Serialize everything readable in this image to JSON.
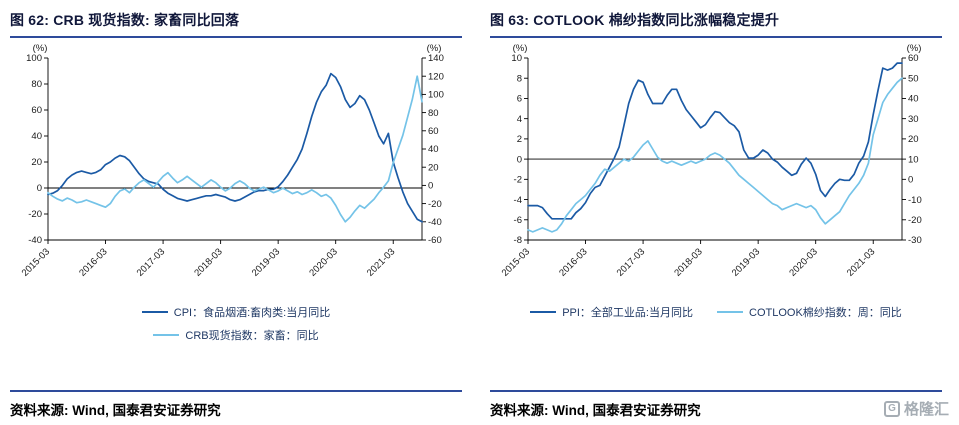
{
  "watermark": {
    "text": "格隆汇",
    "letter": "G"
  },
  "chart_data": [
    {
      "type": "line",
      "title": "图 62: CRB 现货指数: 家畜同比回落",
      "source": "资料来源: Wind, 国泰君安证券研究",
      "legend_position": "bottom",
      "grid": false,
      "x_labels": [
        "2015-03",
        "2016-03",
        "2017-03",
        "2018-03",
        "2019-03",
        "2020-03",
        "2021-03"
      ],
      "x_label_indices": [
        0,
        12,
        24,
        36,
        48,
        60,
        72
      ],
      "left_axis": {
        "label": "(%)",
        "min": -40,
        "max": 100,
        "ticks": [
          100,
          80,
          60,
          40,
          20,
          0,
          -20,
          -40
        ]
      },
      "right_axis": {
        "label": "(%)",
        "min": -60,
        "max": 140,
        "ticks": [
          140,
          120,
          100,
          80,
          60,
          40,
          20,
          0,
          -20,
          -40,
          -60
        ]
      },
      "series": [
        {
          "name": "CPI：食品烟酒:畜肉类:当月同比",
          "axis": "left",
          "color": "#1b5aa5",
          "values": [
            -5,
            -4,
            -2,
            2,
            7,
            10,
            12,
            13,
            12,
            11,
            12,
            14,
            18,
            20,
            23,
            25,
            24,
            21,
            16,
            11,
            7,
            5,
            4,
            3,
            -1,
            -4,
            -6,
            -8,
            -9,
            -10,
            -9,
            -8,
            -7,
            -6,
            -6,
            -5,
            -6,
            -7,
            -9,
            -10,
            -9,
            -7,
            -5,
            -3,
            -2,
            -2,
            -1,
            -1,
            1,
            5,
            10,
            16,
            22,
            30,
            42,
            55,
            66,
            74,
            79,
            88,
            85,
            78,
            68,
            62,
            65,
            71,
            68,
            60,
            50,
            40,
            34,
            42,
            20,
            8,
            -3,
            -12,
            -18,
            -24,
            -26
          ]
        },
        {
          "name": "CRB现货指数：家畜：同比",
          "axis": "right",
          "color": "#74c3e8",
          "values": [
            -8,
            -12,
            -15,
            -17,
            -14,
            -16,
            -19,
            -18,
            -16,
            -18,
            -20,
            -22,
            -24,
            -20,
            -12,
            -6,
            -4,
            -8,
            -2,
            3,
            6,
            2,
            -2,
            4,
            10,
            14,
            8,
            3,
            6,
            10,
            6,
            2,
            -2,
            2,
            6,
            3,
            -2,
            -6,
            -3,
            2,
            5,
            2,
            -3,
            -6,
            -4,
            -2,
            -5,
            -8,
            -6,
            -3,
            -6,
            -9,
            -7,
            -10,
            -8,
            -5,
            -8,
            -12,
            -10,
            -14,
            -22,
            -32,
            -40,
            -35,
            -28,
            -22,
            -25,
            -20,
            -15,
            -8,
            -2,
            5,
            25,
            40,
            55,
            75,
            95,
            120,
            92
          ]
        }
      ]
    },
    {
      "type": "line",
      "title": "图 63: COTLOOK 棉纱指数同比涨幅稳定提升",
      "source": "资料来源: Wind, 国泰君安证券研究",
      "legend_position": "bottom",
      "grid": false,
      "x_labels": [
        "2015-03",
        "2016-03",
        "2017-03",
        "2018-03",
        "2019-03",
        "2020-03",
        "2021-03"
      ],
      "x_label_indices": [
        0,
        12,
        24,
        36,
        48,
        60,
        72
      ],
      "left_axis": {
        "label": "(%)",
        "min": -8,
        "max": 10,
        "ticks": [
          10,
          8,
          6,
          4,
          2,
          0,
          -2,
          -4,
          -6,
          -8
        ]
      },
      "right_axis": {
        "label": "(%)",
        "min": -30,
        "max": 60,
        "ticks": [
          60,
          50,
          40,
          30,
          20,
          10,
          0,
          -10,
          -20,
          -30
        ]
      },
      "series": [
        {
          "name": "PPI：全部工业品:当月同比",
          "axis": "left",
          "color": "#1b5aa5",
          "values": [
            -4.6,
            -4.6,
            -4.6,
            -4.8,
            -5.4,
            -5.9,
            -5.9,
            -5.9,
            -5.9,
            -5.9,
            -5.3,
            -4.9,
            -4.3,
            -3.4,
            -2.8,
            -2.6,
            -1.7,
            -0.8,
            0.1,
            1.2,
            3.3,
            5.5,
            6.9,
            7.8,
            7.6,
            6.4,
            5.5,
            5.5,
            5.5,
            6.3,
            6.9,
            6.9,
            5.8,
            4.9,
            4.3,
            3.7,
            3.1,
            3.4,
            4.1,
            4.7,
            4.6,
            4.1,
            3.6,
            3.3,
            2.7,
            0.9,
            0.1,
            0.1,
            0.4,
            0.9,
            0.6,
            0,
            -0.3,
            -0.8,
            -1.2,
            -1.6,
            -1.4,
            -0.5,
            0.1,
            -0.4,
            -1.5,
            -3.1,
            -3.7,
            -3,
            -2.4,
            -2,
            -2.1,
            -2.1,
            -1.5,
            -0.4,
            0.3,
            1.7,
            4.4,
            6.8,
            9,
            8.8,
            9,
            9.5,
            9.5
          ]
        },
        {
          "name": "COTLOOK棉纱指数：周：同比",
          "axis": "right",
          "color": "#74c3e8",
          "values": [
            -25,
            -26,
            -25,
            -24,
            -25,
            -26,
            -25,
            -22,
            -18,
            -15,
            -12,
            -10,
            -8,
            -5,
            -2,
            2,
            5,
            4,
            6,
            8,
            10,
            9,
            11,
            14,
            17,
            19,
            15,
            11,
            9,
            8,
            9,
            8,
            7,
            8,
            9,
            8,
            9,
            10,
            12,
            13,
            12,
            10,
            8,
            5,
            2,
            0,
            -2,
            -4,
            -6,
            -8,
            -10,
            -12,
            -13,
            -15,
            -14,
            -13,
            -12,
            -13,
            -14,
            -13,
            -15,
            -19,
            -22,
            -20,
            -18,
            -16,
            -12,
            -8,
            -5,
            -2,
            2,
            8,
            22,
            30,
            38,
            42,
            45,
            48,
            50
          ]
        }
      ]
    }
  ]
}
